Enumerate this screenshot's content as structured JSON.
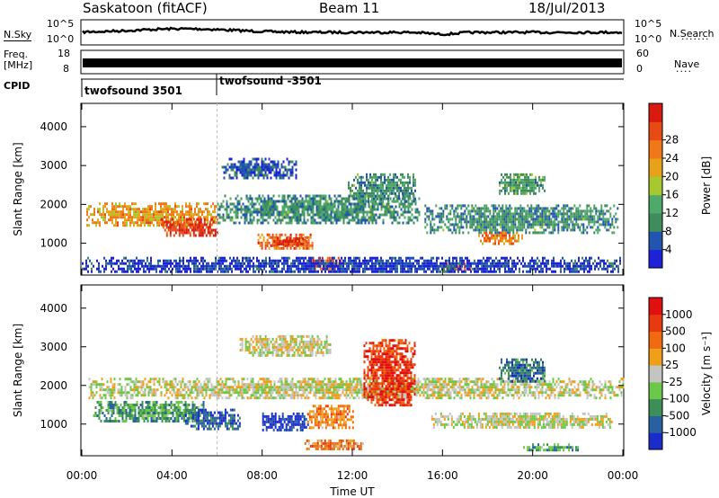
{
  "header": {
    "station": "Saskatoon (fitACF)",
    "beam": "Beam 11",
    "date": "18/Jul/2013"
  },
  "side_labels": {
    "nsky": "N.Sky",
    "nsky_ticks": [
      "10^5",
      "10^0"
    ],
    "nsearch": "N.Search",
    "nsearch_ticks": [
      "10^5",
      "10^0"
    ],
    "freq_line1": "Freq.",
    "freq_line2": "[MHz]",
    "freq_ticks": [
      "18",
      "8"
    ],
    "nave": "Nave",
    "nave_ticks": [
      "60",
      "0"
    ],
    "cpid": "CPID"
  },
  "cpid_entries": [
    {
      "label": "twofsound 3501",
      "start_hour": 0
    },
    {
      "label": "twofsound -3501",
      "start_hour": 6
    }
  ],
  "chart_data": [
    {
      "type": "heatmap",
      "name": "power-panel",
      "ylabel": "Slant Range [km]",
      "y_ticks": [
        1000,
        2000,
        3000,
        4000
      ],
      "ylim": [
        180,
        4600
      ],
      "x_ticks": [
        "00:00",
        "04:00",
        "08:00",
        "12:00",
        "16:00",
        "20:00",
        "00:00"
      ],
      "xlim_hours": [
        0,
        24
      ],
      "colorbar": {
        "label": "Power [dB]",
        "ticks": [
          "4",
          "8",
          "12",
          "16",
          "20",
          "24",
          "28"
        ],
        "colors": [
          "#1d22d8",
          "#2255b0",
          "#3f8c5c",
          "#4fa96a",
          "#a8c830",
          "#e8a21a",
          "#f07818",
          "#e84a14",
          "#d81a10"
        ]
      },
      "blobs": [
        {
          "t0": 0.2,
          "t1": 6.0,
          "r0": 1450,
          "r1": 2050,
          "level": 0.65
        },
        {
          "t0": 3.5,
          "t1": 6.0,
          "r0": 1200,
          "r1": 1650,
          "level": 0.9
        },
        {
          "t0": 6.0,
          "t1": 15.0,
          "r0": 1550,
          "r1": 2250,
          "level": 0.3
        },
        {
          "t0": 7.8,
          "t1": 10.2,
          "r0": 850,
          "r1": 1250,
          "level": 0.75
        },
        {
          "t0": 8.5,
          "t1": 10.0,
          "r0": 950,
          "r1": 1150,
          "level": 0.95
        },
        {
          "t0": 6.2,
          "t1": 9.5,
          "r0": 2700,
          "r1": 3200,
          "level": 0.15
        },
        {
          "t0": 10.0,
          "t1": 11.5,
          "r0": 350,
          "r1": 650,
          "level": 0.8
        },
        {
          "t0": 11.8,
          "t1": 14.8,
          "r0": 2100,
          "r1": 2800,
          "level": 0.3
        },
        {
          "t0": 15.2,
          "t1": 23.8,
          "r0": 1300,
          "r1": 2000,
          "level": 0.3
        },
        {
          "t0": 17.5,
          "t1": 19.5,
          "r0": 1000,
          "r1": 1300,
          "level": 0.7
        },
        {
          "t0": 16.0,
          "t1": 17.2,
          "r0": 300,
          "r1": 500,
          "level": 0.85
        },
        {
          "t0": 0.0,
          "t1": 24.0,
          "r0": 250,
          "r1": 650,
          "level": 0.1
        },
        {
          "t0": 18.5,
          "t1": 20.5,
          "r0": 2300,
          "r1": 2800,
          "level": 0.35
        }
      ]
    },
    {
      "type": "heatmap",
      "name": "velocity-panel",
      "ylabel": "Slant Range [km]",
      "y_ticks": [
        1000,
        2000,
        3000,
        4000
      ],
      "ylim": [
        180,
        4600
      ],
      "x_ticks": [
        "00:00",
        "04:00",
        "08:00",
        "12:00",
        "16:00",
        "20:00",
        "00:00"
      ],
      "xlim_hours": [
        0,
        24
      ],
      "xlabel": "Time UT",
      "colorbar": {
        "label": "Velocity [m s⁻¹]",
        "ticks": [
          "1000",
          "500",
          "100",
          "25",
          "-25",
          "-100",
          "-500",
          "-1000"
        ],
        "colors": [
          "#1c2ccc",
          "#2860a0",
          "#3e8e58",
          "#6cc848",
          "#c4c4c0",
          "#f0a018",
          "#f06a10",
          "#e83a10",
          "#e01010"
        ]
      },
      "blobs": [
        {
          "t0": 0.3,
          "t1": 24.0,
          "r0": 1700,
          "r1": 2200,
          "level": 0.5
        },
        {
          "t0": 0.5,
          "t1": 5.5,
          "r0": 1050,
          "r1": 1600,
          "level": 0.3
        },
        {
          "t0": 4.5,
          "t1": 7.0,
          "r0": 900,
          "r1": 1400,
          "level": 0.15
        },
        {
          "t0": 8.0,
          "t1": 10.0,
          "r0": 850,
          "r1": 1300,
          "level": 0.05
        },
        {
          "t0": 10.0,
          "t1": 12.0,
          "r0": 900,
          "r1": 1500,
          "level": 0.7
        },
        {
          "t0": 9.8,
          "t1": 12.5,
          "r0": 380,
          "r1": 600,
          "level": 0.68
        },
        {
          "t0": 12.5,
          "t1": 14.8,
          "r0": 1500,
          "r1": 3200,
          "level": 0.85
        },
        {
          "t0": 7.0,
          "t1": 11.0,
          "r0": 2800,
          "r1": 3300,
          "level": 0.5
        },
        {
          "t0": 18.5,
          "t1": 20.5,
          "r0": 2100,
          "r1": 2700,
          "level": 0.2
        },
        {
          "t0": 19.5,
          "t1": 22.0,
          "r0": 300,
          "r1": 500,
          "level": 0.3
        },
        {
          "t0": 15.5,
          "t1": 23.5,
          "r0": 900,
          "r1": 1300,
          "level": 0.5
        }
      ]
    }
  ]
}
